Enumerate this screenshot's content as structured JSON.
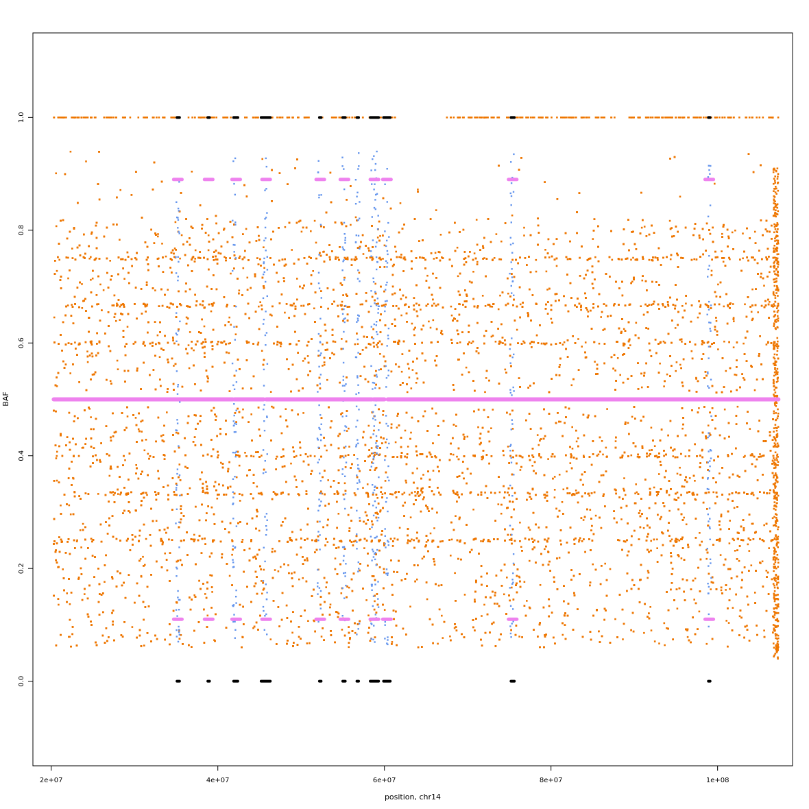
{
  "chart_data": {
    "type": "scatter",
    "title": "",
    "xlabel": "position, chr14",
    "ylabel": "BAF",
    "xlim": [
      17800000,
      109000000
    ],
    "ylim": [
      -0.15,
      1.15
    ],
    "x_ticks": [
      {
        "value": 20000000,
        "label": "2e+07"
      },
      {
        "value": 40000000,
        "label": "4e+07"
      },
      {
        "value": 60000000,
        "label": "6e+07"
      },
      {
        "value": 80000000,
        "label": "8e+07"
      },
      {
        "value": 100000000,
        "label": "1e+08"
      }
    ],
    "y_ticks": [
      {
        "value": 0.0,
        "label": "0.0"
      },
      {
        "value": 0.2,
        "label": "0.2"
      },
      {
        "value": 0.4,
        "label": "0.4"
      },
      {
        "value": 0.6,
        "label": "0.6"
      },
      {
        "value": 0.8,
        "label": "0.8"
      },
      {
        "value": 1.0,
        "label": "1.0"
      }
    ],
    "grid": false,
    "legend": "none",
    "colors": {
      "heterozygous": "#ee7600",
      "low_coverage": "#6495ed",
      "segment_mean": "#ee82ee",
      "homozygous": "#000000"
    },
    "data_range_x": [
      20300000,
      107300000
    ],
    "orange_band": {
      "low": 0.06,
      "high": 0.94,
      "dense_low": 0.06,
      "dense_high": 0.82
    },
    "orange_density_lines": [
      0.25,
      0.333,
      0.4,
      0.6,
      0.667,
      0.75
    ],
    "gaps_x": [
      [
        45600000,
        46300000
      ],
      [
        60300000,
        60700000
      ],
      [
        67200000,
        67800000
      ]
    ],
    "segments_mean": [
      {
        "x0": 20300000,
        "x1": 41800000,
        "y": 0.5
      },
      {
        "x0": 42000000,
        "x1": 45500000,
        "y": 0.5
      },
      {
        "x0": 45800000,
        "x1": 58500000,
        "y": 0.5
      },
      {
        "x0": 58700000,
        "x1": 60000000,
        "y": 0.5
      },
      {
        "x0": 60400000,
        "x1": 107300000,
        "y": 0.5
      }
    ],
    "segments_mirror": [
      {
        "x": 35200000,
        "y_high": 0.89,
        "y_low": 0.11
      },
      {
        "x": 38900000,
        "y_high": 0.89,
        "y_low": 0.11
      },
      {
        "x": 42200000,
        "y_high": 0.89,
        "y_low": 0.11
      },
      {
        "x": 45800000,
        "y_high": 0.89,
        "y_low": 0.11
      },
      {
        "x": 52300000,
        "y_high": 0.89,
        "y_low": 0.11
      },
      {
        "x": 55200000,
        "y_high": 0.89,
        "y_low": 0.11
      },
      {
        "x": 58800000,
        "y_high": 0.89,
        "y_low": 0.11
      },
      {
        "x": 60300000,
        "y_high": 0.89,
        "y_low": 0.11
      },
      {
        "x": 75400000,
        "y_high": 0.89,
        "y_low": 0.11
      },
      {
        "x": 99000000,
        "y_high": 0.89,
        "y_low": 0.11
      }
    ],
    "homozygous_clusters": [
      {
        "x0": 35100000,
        "x1": 35400000
      },
      {
        "x0": 38800000,
        "x1": 39000000
      },
      {
        "x0": 41900000,
        "x1": 42400000
      },
      {
        "x0": 45200000,
        "x1": 46300000
      },
      {
        "x0": 52200000,
        "x1": 52400000
      },
      {
        "x0": 55000000,
        "x1": 55300000
      },
      {
        "x0": 56700000,
        "x1": 56900000
      },
      {
        "x0": 58300000,
        "x1": 59300000
      },
      {
        "x0": 59900000,
        "x1": 60700000
      },
      {
        "x0": 75200000,
        "x1": 75600000
      },
      {
        "x0": 98900000,
        "x1": 99100000
      }
    ],
    "low_coverage_columns": [
      35200000,
      42000000,
      45700000,
      52200000,
      55200000,
      56800000,
      58600000,
      59100000,
      60300000,
      75300000,
      99000000
    ],
    "orange_top_row_range": [
      20300000,
      107300000
    ],
    "orange_top_row_gaps": [
      [
        61300000,
        67500000
      ],
      [
        87800000,
        89400000
      ]
    ]
  }
}
